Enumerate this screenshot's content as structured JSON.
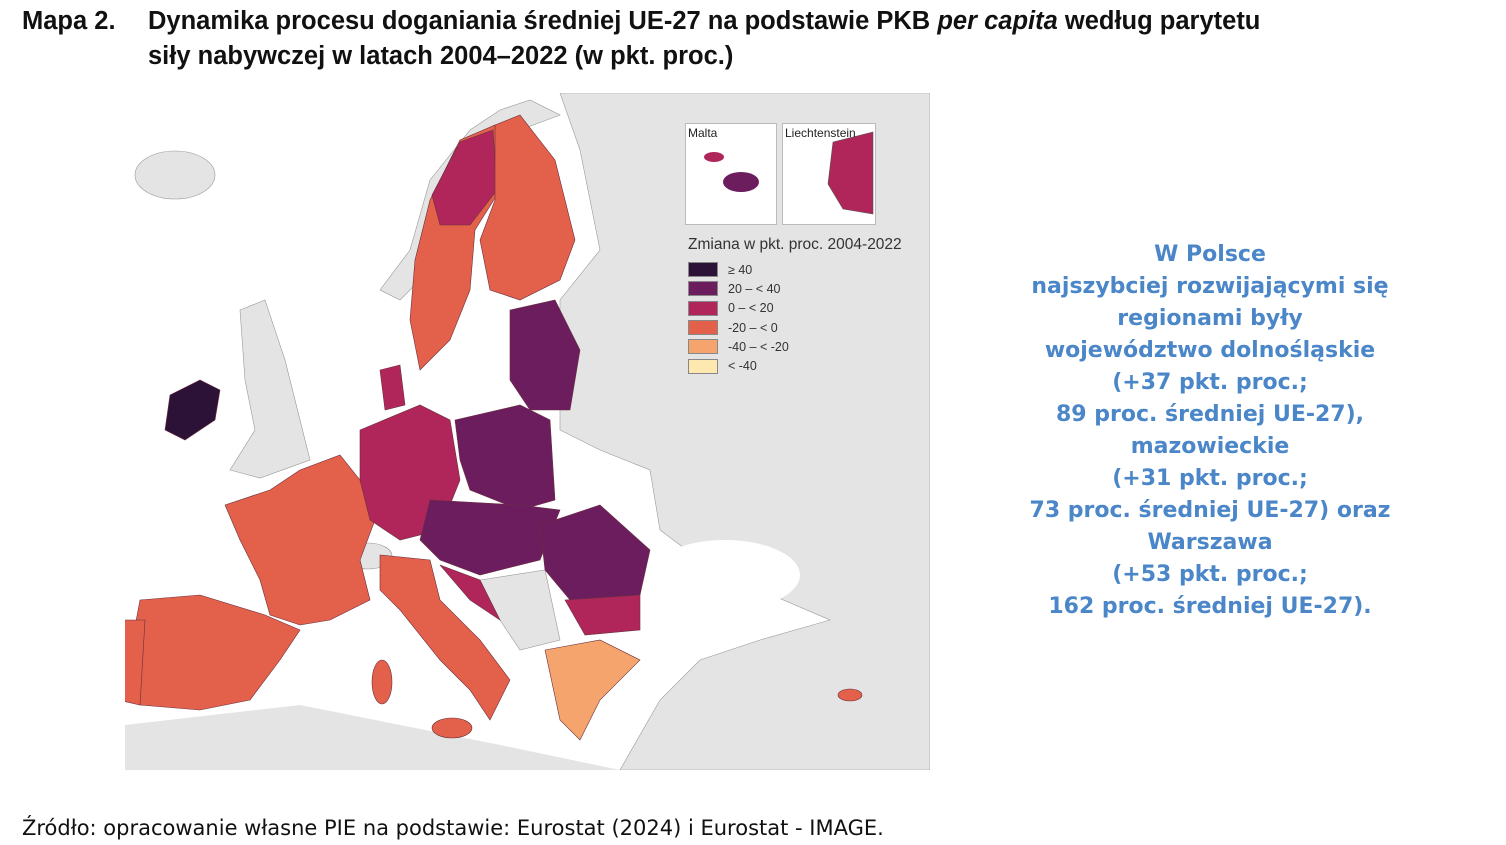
{
  "title": {
    "number": "Mapa 2.",
    "line1_before": "Dynamika procesu doganiania średniej UE-27 na podstawie PKB ",
    "line1_italic": "per capita",
    "line1_after": " według parytetu",
    "line2": "siły nabywczej w latach 2004–2022 (w pkt. proc.)"
  },
  "map": {
    "insets": {
      "malta": "Malta",
      "liechtenstein": "Liechtenstein"
    },
    "legend": {
      "title": "Zmiana w pkt. proc. 2004-2022",
      "classes": [
        {
          "label": "≥ 40",
          "color": "#2d1238"
        },
        {
          "label": "20 – < 40",
          "color": "#6b1d5e"
        },
        {
          "label": "0 – < 20",
          "color": "#b0265a"
        },
        {
          "label": "-20 – < 0",
          "color": "#e3604a"
        },
        {
          "label": "-40 – < -20",
          "color": "#f4a46c"
        },
        {
          "label": "< -40",
          "color": "#fde9b0"
        }
      ]
    },
    "non_eu_color": "#e4e4e4",
    "sea_color": "#ffffff"
  },
  "note": {
    "lines": [
      "W Polsce",
      "najszybciej rozwijającymi się",
      "regionami były",
      "województwo dolnośląskie",
      "(+37 pkt. proc.;",
      "89 proc. średniej UE-27),",
      "mazowieckie",
      "(+31 pkt. proc.;",
      "73 proc. średniej UE-27) oraz",
      "Warszawa",
      "(+53 pkt. proc.;",
      "162 proc. średniej UE-27)."
    ],
    "color": "#4a86c8"
  },
  "source": "Źródło: opracowanie własne PIE na podstawie: Eurostat (2024) i Eurostat - IMAGE."
}
